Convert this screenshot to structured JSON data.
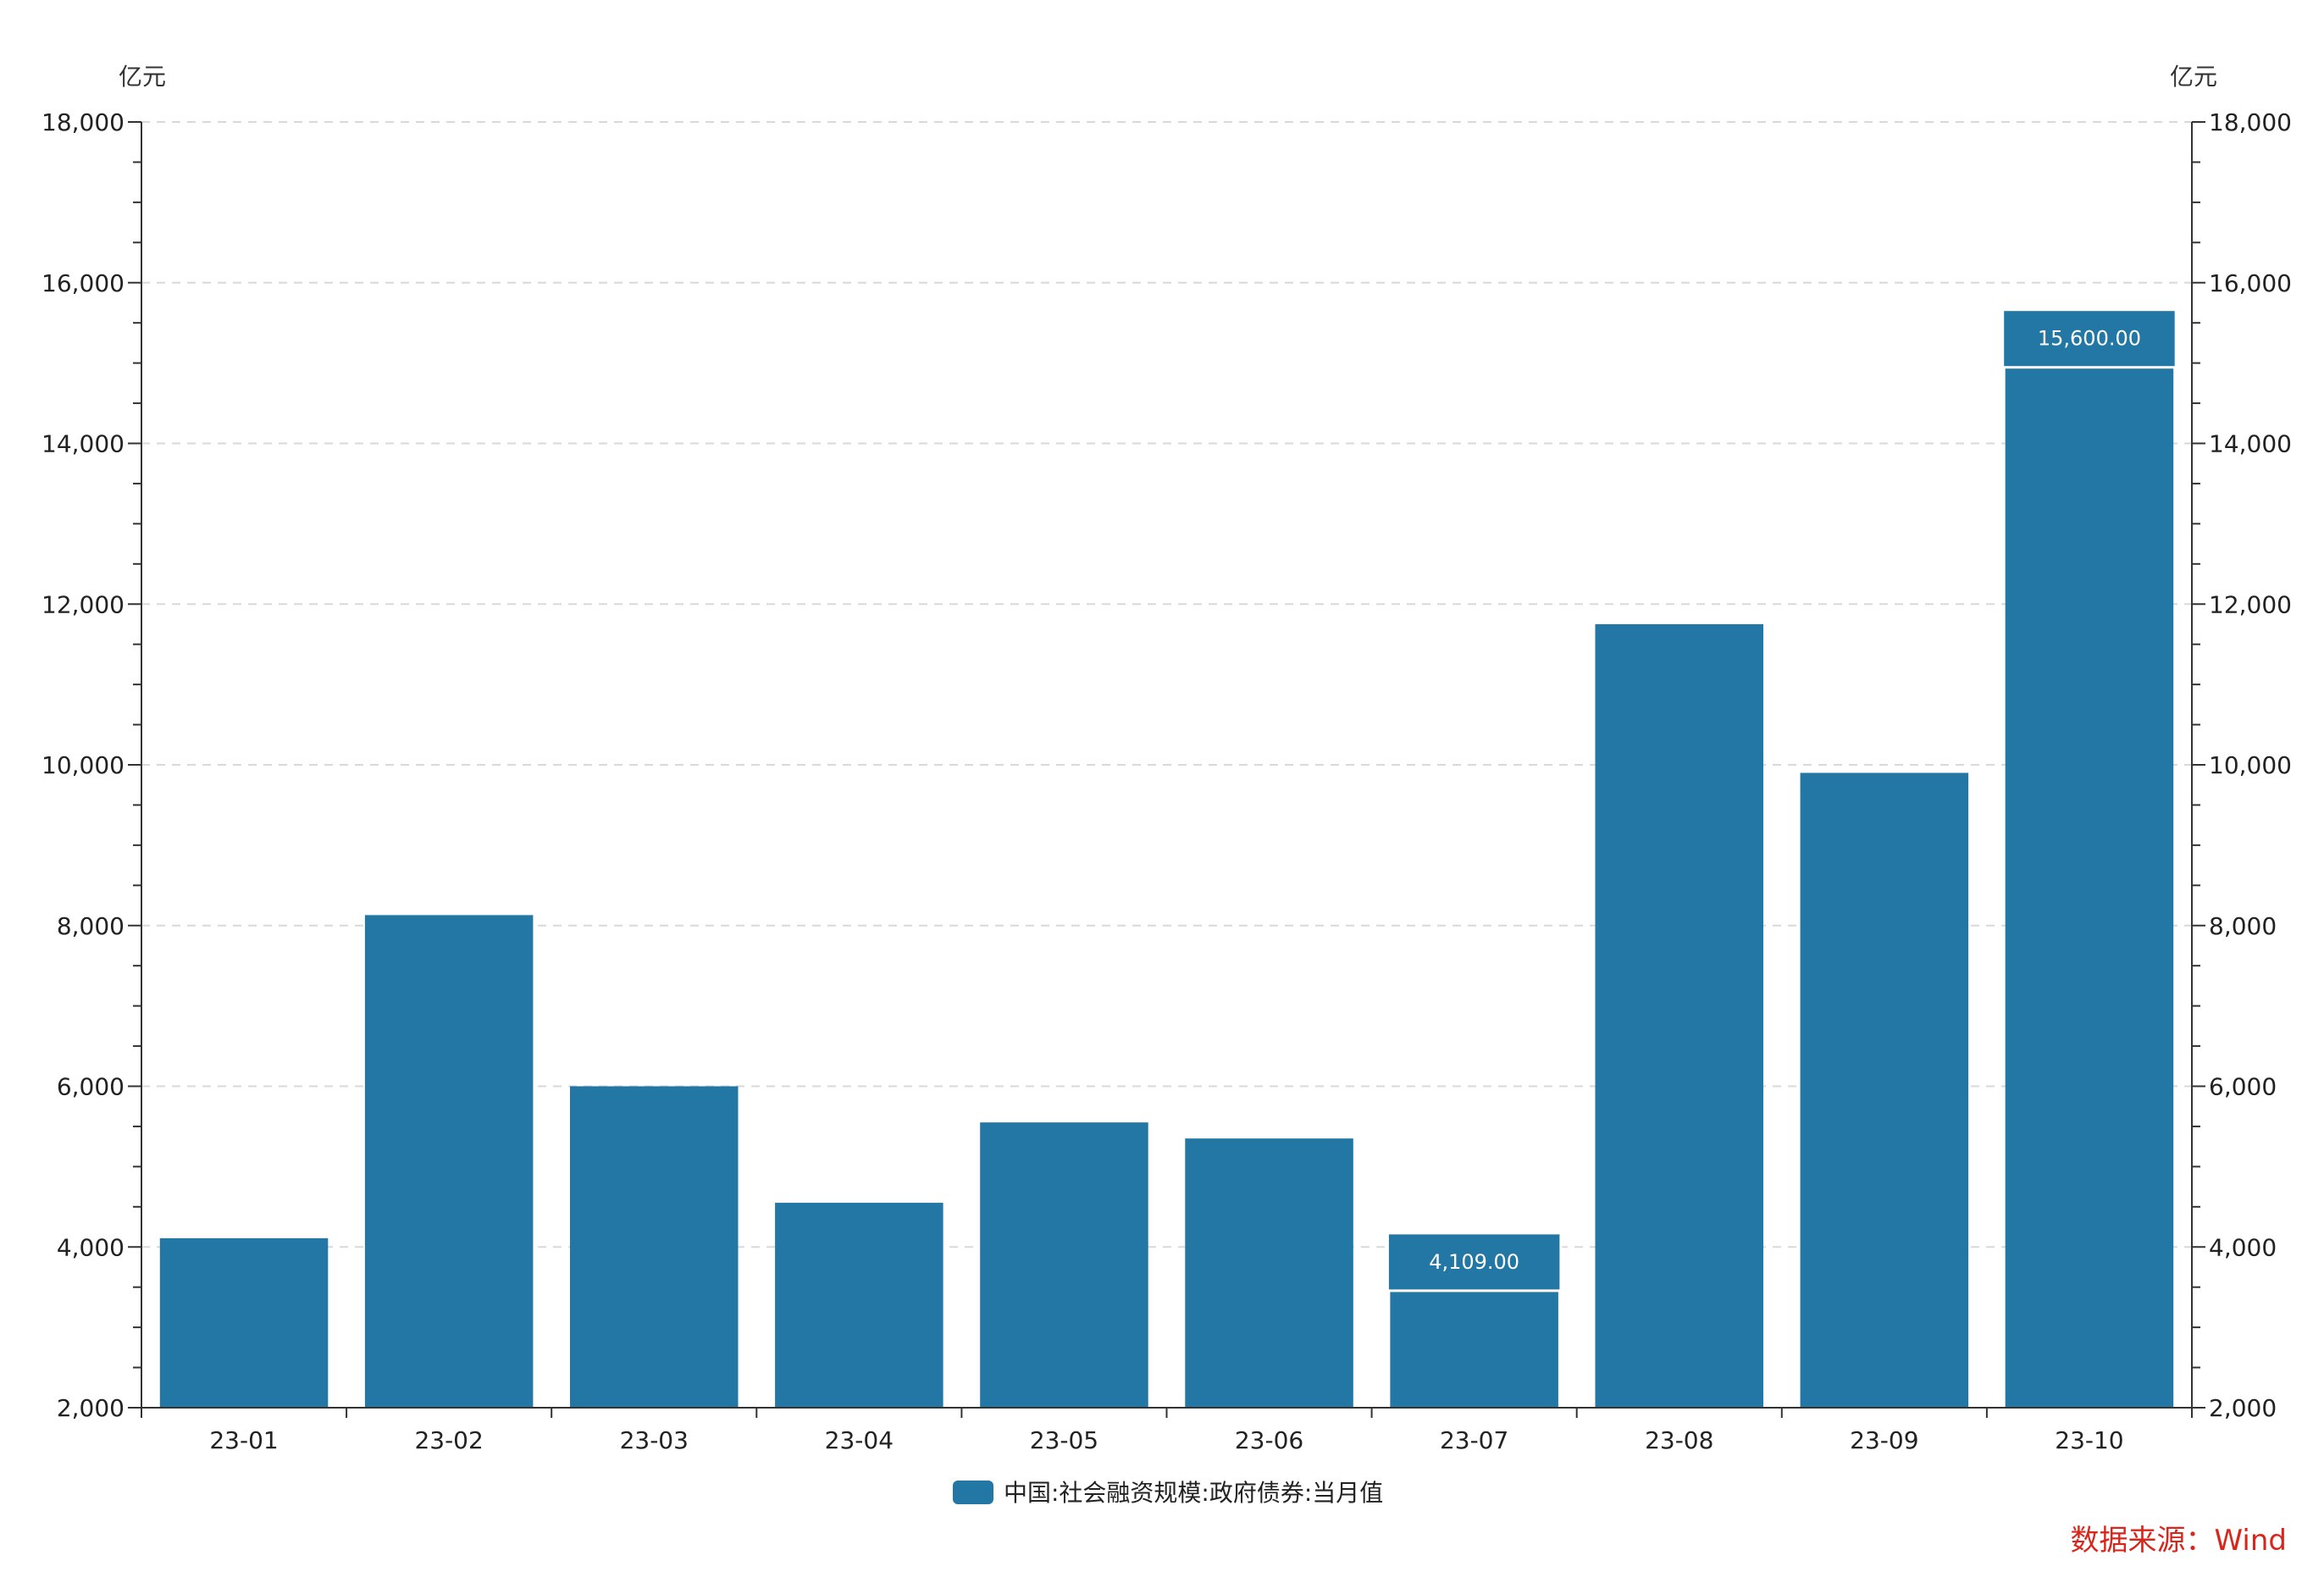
{
  "chart_data": {
    "type": "bar",
    "categories": [
      "23-01",
      "23-02",
      "23-03",
      "23-04",
      "23-05",
      "23-06",
      "23-07",
      "23-08",
      "23-09",
      "23-10"
    ],
    "series": [
      {
        "name": "中国:社会融资规模:政府债券:当月值",
        "values": [
          4109,
          8130,
          6000,
          4550,
          5550,
          5350,
          4109,
          11750,
          9900,
          15600
        ],
        "color": "#2377a4"
      }
    ],
    "ylim": [
      2000,
      18000
    ],
    "yticks": [
      2000,
      4000,
      6000,
      8000,
      10000,
      12000,
      14000,
      16000,
      18000
    ],
    "ytick_labels": [
      "2,000",
      "4,000",
      "6,000",
      "8,000",
      "10,000",
      "12,000",
      "14,000",
      "16,000",
      "18,000"
    ],
    "y_unit_left": "亿元",
    "y_unit_right": "亿元",
    "grid": true,
    "legend_position": "bottom-center",
    "annotations": [
      {
        "category": "23-07",
        "text": "4,109.00"
      },
      {
        "category": "23-10",
        "text": "15,600.00"
      }
    ],
    "source": "数据来源：Wind"
  }
}
